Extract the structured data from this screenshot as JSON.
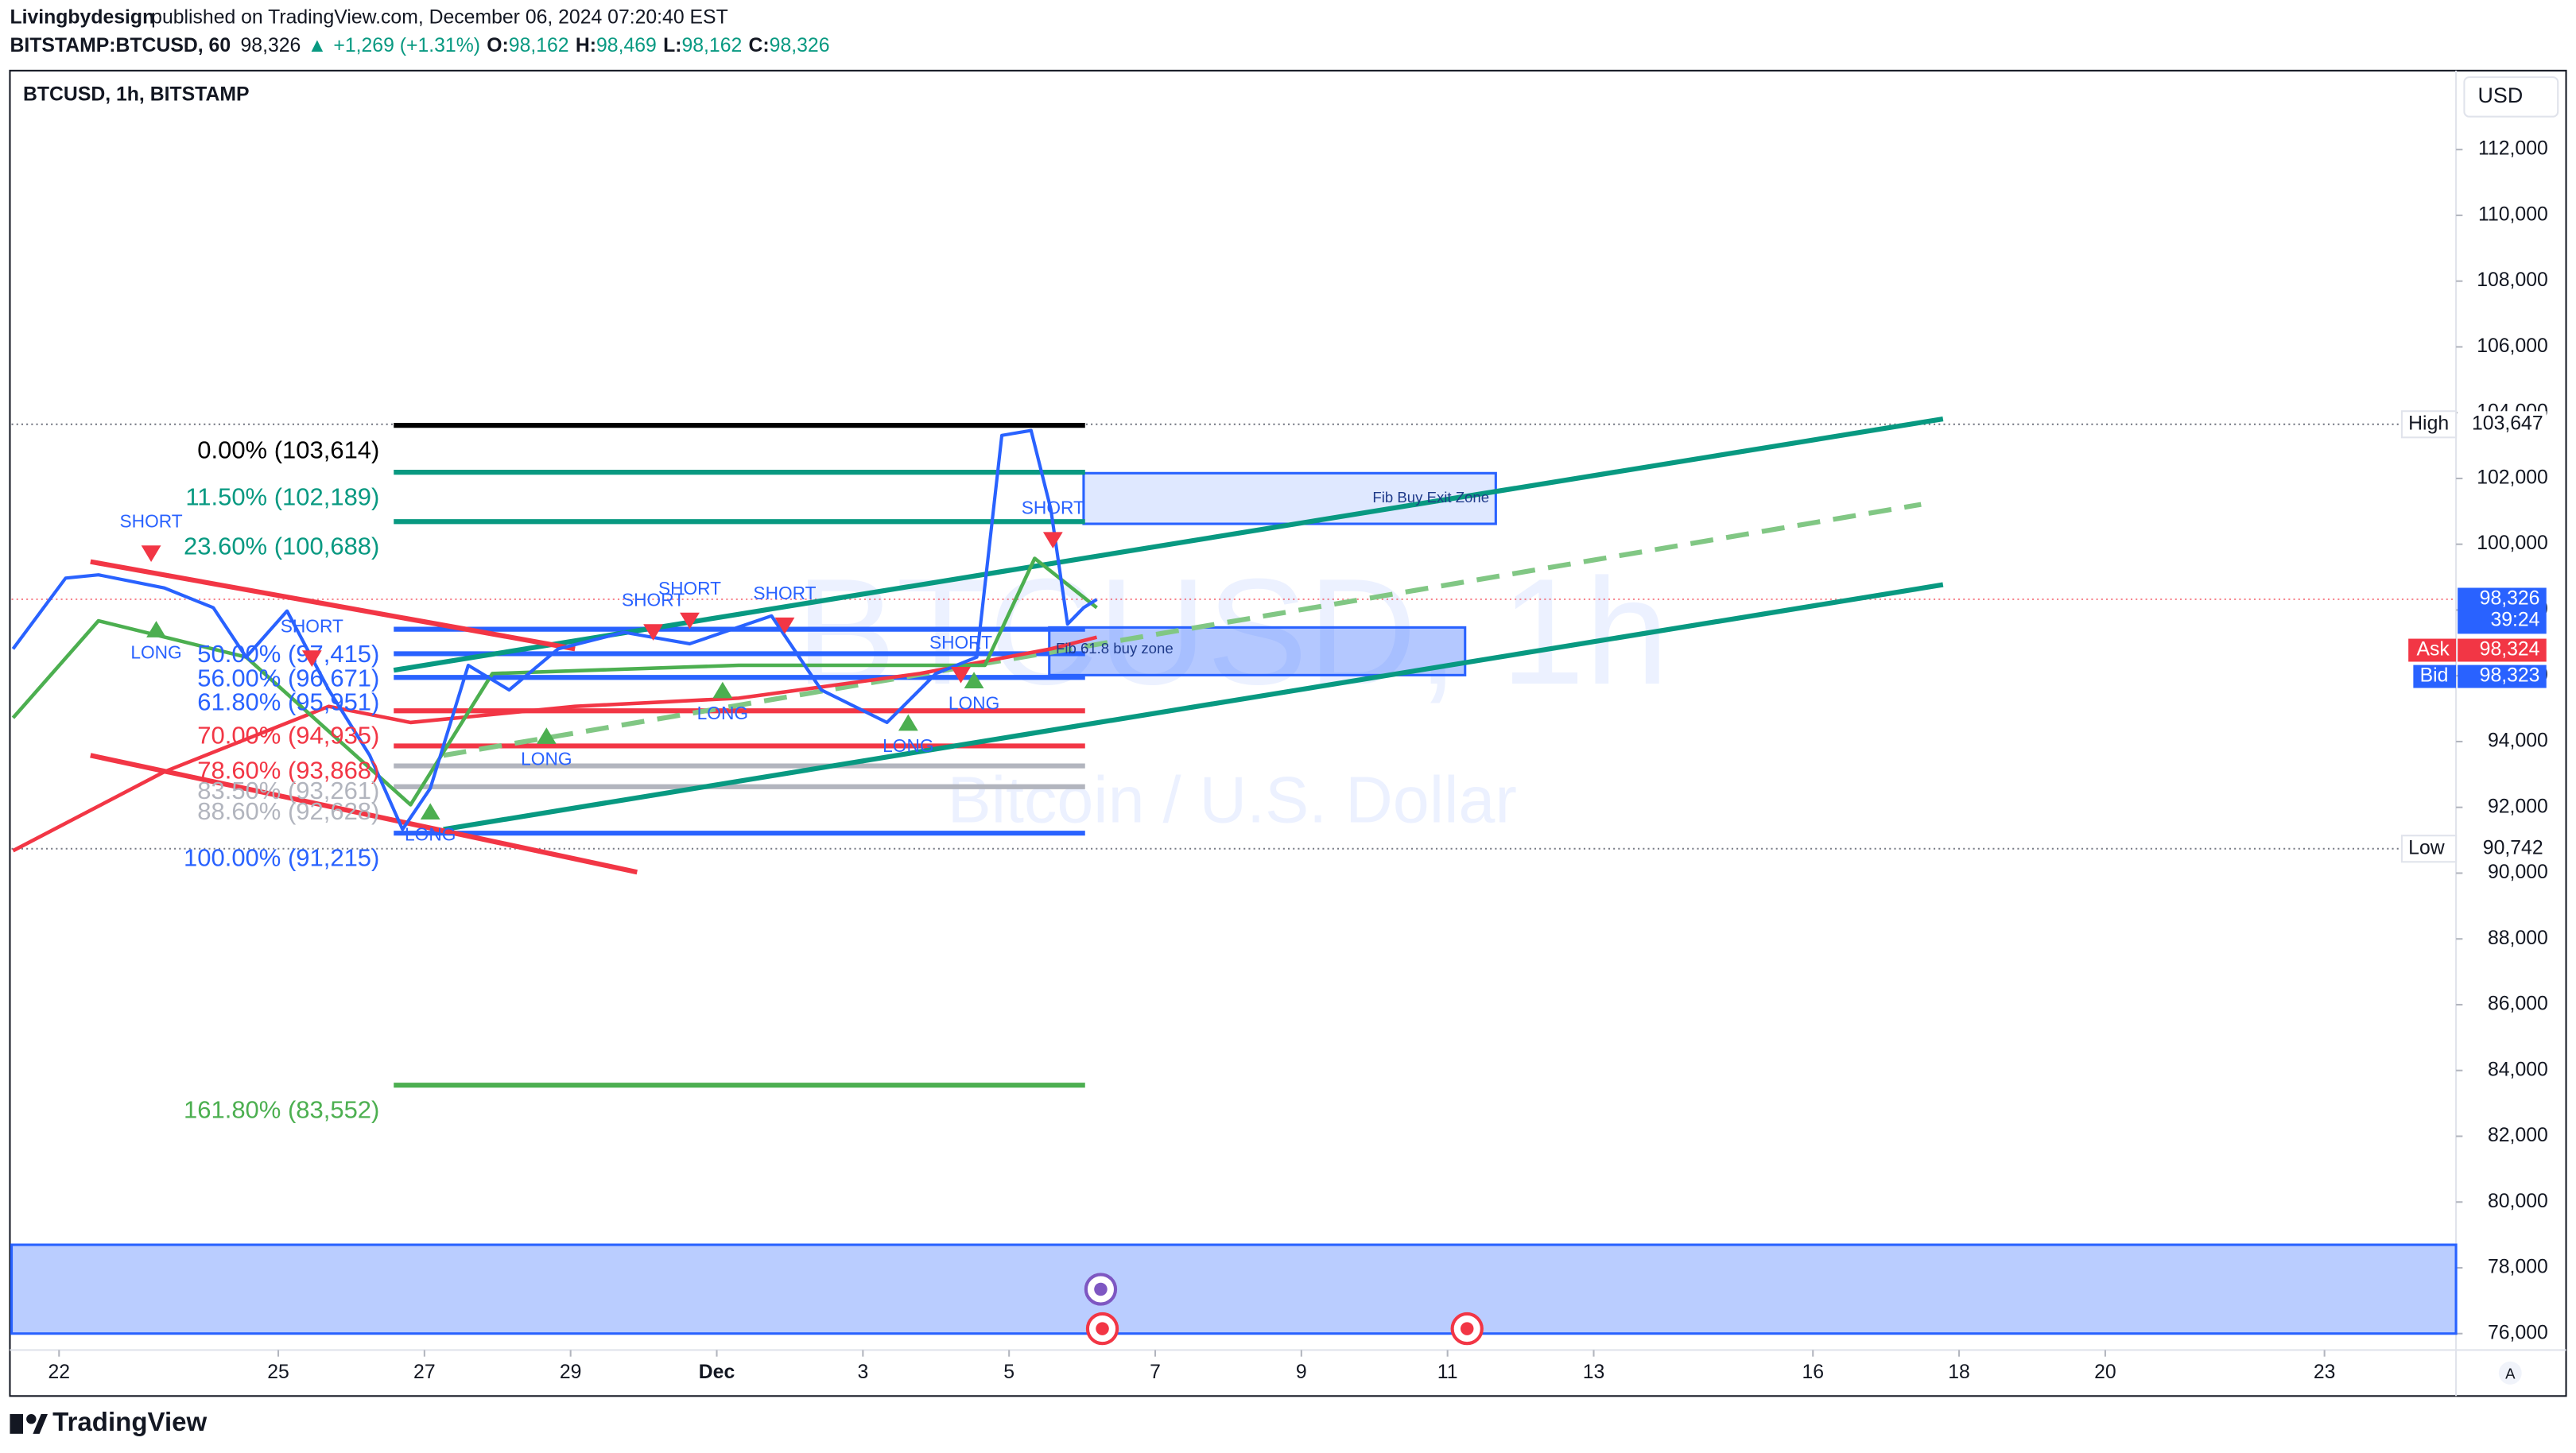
{
  "header": {
    "publisher": "Livingbydesign",
    "published": "published on TradingView.com, December 06, 2024 07:20:40 EST",
    "symbol": "BITSTAMP:BTCUSD, 60",
    "last": "98,326",
    "change": "+1,269 (+1.31%)",
    "ohlc": [
      {
        "label": "O:",
        "value": "98,162"
      },
      {
        "label": "H:",
        "value": "98,469"
      },
      {
        "label": "L:",
        "value": "98,162"
      },
      {
        "label": "C:",
        "value": "98,326"
      }
    ]
  },
  "chart_data": {
    "type": "line",
    "legend_title": "BTCUSD, 1h, BITSTAMP",
    "watermark": "BTCUSD, 1h",
    "watermark_subtitle": "Bitcoin / U.S. Dollar",
    "currency": "USD",
    "scale_mode": "A",
    "brand": "TradingView",
    "xlim": [
      -0.65,
      32.8
    ],
    "xticks": [
      {
        "value": 0,
        "label": "22"
      },
      {
        "value": 3,
        "label": "25"
      },
      {
        "value": 5,
        "label": "27"
      },
      {
        "value": 7,
        "label": "29"
      },
      {
        "value": 9,
        "label": "Dec"
      },
      {
        "value": 11,
        "label": "3"
      },
      {
        "value": 13,
        "label": "5"
      },
      {
        "value": 15,
        "label": "7"
      },
      {
        "value": 17,
        "label": "9"
      },
      {
        "value": 19,
        "label": "11"
      },
      {
        "value": 21,
        "label": "13"
      },
      {
        "value": 24,
        "label": "16"
      },
      {
        "value": 26,
        "label": "18"
      },
      {
        "value": 28,
        "label": "20"
      },
      {
        "value": 31,
        "label": "23"
      }
    ],
    "ylim": [
      75600,
      114400
    ],
    "yticks": [
      {
        "value": 76000,
        "label": "76,000"
      },
      {
        "value": 78000,
        "label": "78,000"
      },
      {
        "value": 80000,
        "label": "80,000"
      },
      {
        "value": 82000,
        "label": "82,000"
      },
      {
        "value": 84000,
        "label": "84,000"
      },
      {
        "value": 86000,
        "label": "86,000"
      },
      {
        "value": 88000,
        "label": "88,000"
      },
      {
        "value": 90000,
        "label": "90,000"
      },
      {
        "value": 92000,
        "label": "92,000"
      },
      {
        "value": 94000,
        "label": "94,000"
      },
      {
        "value": 96000,
        "label": "96,000"
      },
      {
        "value": 98000,
        "label": "98,000"
      },
      {
        "value": 100000,
        "label": "100,000"
      },
      {
        "value": 102000,
        "label": "102,000"
      },
      {
        "value": 104000,
        "label": "104,000"
      },
      {
        "value": 106000,
        "label": "106,000"
      },
      {
        "value": 108000,
        "label": "108,000"
      },
      {
        "value": 110000,
        "label": "110,000"
      },
      {
        "value": 112000,
        "label": "112,000"
      }
    ],
    "series": [
      {
        "color": "#f23645",
        "x": [
          -0.63,
          1.44,
          3.69,
          4.81,
          7.06,
          9.3,
          11.78,
          13.57,
          14.2
        ],
        "values": [
          90680,
          93080,
          95070,
          94580,
          95070,
          95320,
          96070,
          96820,
          97170
        ]
      },
      {
        "color": "#4caf50",
        "x": [
          -0.63,
          0.54,
          2.56,
          4.81,
          5.93,
          9.3,
          12.67,
          13.35,
          14.2
        ],
        "values": [
          94720,
          97670,
          96570,
          92080,
          96070,
          96320,
          96320,
          99570,
          98070
        ]
      },
      {
        "color": "#2962ff",
        "x": [
          -0.63,
          0.09,
          0.54,
          1.44,
          2.11,
          2.56,
          3.12,
          3.69,
          4.25,
          4.7,
          5.08,
          5.6,
          6.16,
          6.83,
          7.73,
          8.63,
          9.75,
          10.43,
          11.33,
          12.0,
          12.56,
          12.9,
          13.3,
          13.57,
          13.8,
          14.02,
          14.2
        ],
        "values": [
          96820,
          98970,
          99070,
          98670,
          98070,
          96570,
          97970,
          95570,
          93580,
          91330,
          92580,
          96320,
          95570,
          96820,
          97320,
          96970,
          97820,
          95570,
          94580,
          96070,
          96570,
          103310,
          103460,
          101070,
          97570,
          98070,
          98320
        ]
      }
    ],
    "fib_days": [
      4.58,
      14.04
    ],
    "fib_levels": [
      {
        "label": "0.00% (103,614)",
        "value": 103614,
        "color": "#000000"
      },
      {
        "label": "11.50% (102,189)",
        "value": 102189,
        "color": "#089981"
      },
      {
        "label": "23.60% (100,688)",
        "value": 100688,
        "color": "#089981"
      },
      {
        "label": "50.00% (97,415)",
        "value": 97415,
        "color": "#2962ff"
      },
      {
        "label": "56.00% (96,671)",
        "value": 96671,
        "color": "#2962ff"
      },
      {
        "label": "61.80% (95,951)",
        "value": 95951,
        "color": "#2962ff"
      },
      {
        "label": "70.00% (94,935)",
        "value": 94935,
        "color": "#f23645"
      },
      {
        "label": "78.60% (93,868)",
        "value": 93868,
        "color": "#f23645"
      },
      {
        "label": "83.50% (93,261)",
        "value": 93261,
        "color": "#b2b5be"
      },
      {
        "label": "88.60% (92,628)",
        "value": 92628,
        "color": "#b2b5be"
      },
      {
        "label": "100.00% (91,215)",
        "value": 91215,
        "color": "#2962ff"
      },
      {
        "label": "161.80% (83,552)",
        "value": 83552,
        "color": "#4caf50"
      }
    ],
    "trendlines": [
      {
        "color": "#089981",
        "dash": false,
        "x": [
          4.58,
          25.78
        ],
        "values": [
          96170,
          103810
        ]
      },
      {
        "color": "#089981",
        "dash": false,
        "x": [
          5.26,
          25.78
        ],
        "values": [
          91330,
          98770
        ]
      },
      {
        "color": "#81c784",
        "dash": true,
        "x": [
          5.26,
          25.48
        ],
        "values": [
          93580,
          101210
        ]
      },
      {
        "color": "#f23645",
        "dash": false,
        "x": [
          0.43,
          7.06
        ],
        "values": [
          99470,
          96820
        ]
      },
      {
        "color": "#f23645",
        "dash": false,
        "x": [
          0.43,
          7.91
        ],
        "values": [
          93580,
          90030
        ]
      }
    ],
    "zones": [
      {
        "label": "Fib Buy Exit Zone",
        "x": [
          14.02,
          19.66
        ],
        "values": [
          102160,
          100620
        ]
      },
      {
        "label": "Fib 61.8 buy zone",
        "x": [
          13.55,
          19.24
        ],
        "values": [
          97470,
          96020
        ]
      },
      {
        "x": [
          -0.65,
          32.8
        ],
        "values": [
          78700,
          76000
        ]
      }
    ],
    "signals": [
      {
        "label": "SHORT",
        "x": 1.26,
        "value": 100660
      },
      {
        "label": "LONG",
        "x": 1.33,
        "value": 96670
      },
      {
        "label": "SHORT",
        "x": 3.46,
        "value": 97470
      },
      {
        "label": "LONG",
        "x": 5.08,
        "value": 91130
      },
      {
        "label": "LONG",
        "x": 6.67,
        "value": 93430
      },
      {
        "label": "SHORT",
        "x": 8.13,
        "value": 98270
      },
      {
        "label": "SHORT",
        "x": 8.63,
        "value": 98620
      },
      {
        "label": "LONG",
        "x": 9.08,
        "value": 94820
      },
      {
        "label": "SHORT",
        "x": 9.93,
        "value": 98470
      },
      {
        "label": "LONG",
        "x": 11.62,
        "value": 93830
      },
      {
        "label": "SHORT",
        "x": 12.34,
        "value": 96970
      },
      {
        "label": "LONG",
        "x": 12.52,
        "value": 95120
      },
      {
        "label": "SHORT",
        "x": 13.6,
        "value": 101070
      }
    ],
    "price_labels": [
      {
        "name": "High",
        "value": 103647,
        "label": "103,647"
      },
      {
        "name": "Low",
        "value": 90742,
        "label": "90,742"
      }
    ],
    "last_price": {
      "value": 98326,
      "label": "98,326",
      "countdown": "39:24"
    },
    "ask": {
      "name": "Ask",
      "value": 98324,
      "label": "98,324"
    },
    "bid": {
      "name": "Bid",
      "value": 98323,
      "label": "98,323"
    }
  }
}
